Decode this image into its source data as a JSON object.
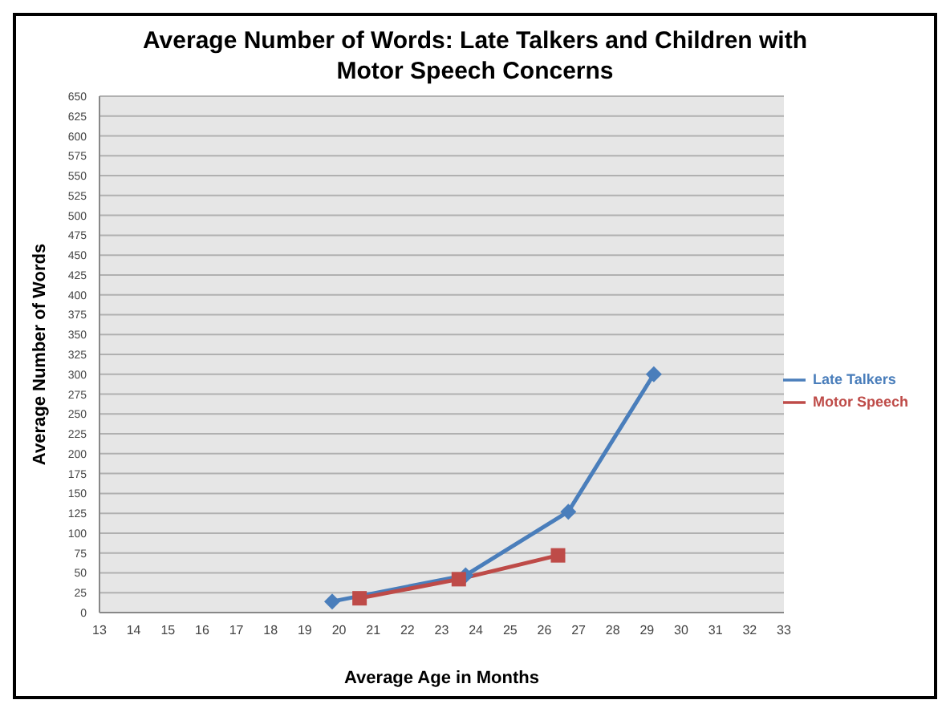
{
  "chart_data": {
    "type": "line",
    "title": "Average Number of Words: Late Talkers and Children with Motor Speech Concerns",
    "xlabel": "Average Age in Months",
    "ylabel": "Average Number of Words",
    "series": [
      {
        "name": "Late Talkers",
        "color": "#4a7ebb",
        "marker": "diamond",
        "x": [
          19.8,
          23.7,
          26.7,
          29.2
        ],
        "values": [
          14,
          47,
          127,
          300
        ]
      },
      {
        "name": "Motor Speech",
        "color": "#be4b48",
        "marker": "square",
        "x": [
          20.6,
          23.5,
          26.4
        ],
        "values": [
          18,
          42,
          72
        ]
      }
    ],
    "xlim": [
      13,
      33
    ],
    "xticks": [
      13,
      14,
      15,
      16,
      17,
      18,
      19,
      20,
      21,
      22,
      23,
      24,
      25,
      26,
      27,
      28,
      29,
      30,
      31,
      32,
      33
    ],
    "ylim": [
      0,
      650
    ],
    "yticks": [
      0,
      25,
      50,
      75,
      100,
      125,
      150,
      175,
      200,
      225,
      250,
      275,
      300,
      325,
      350,
      375,
      400,
      425,
      450,
      475,
      500,
      525,
      550,
      575,
      600,
      625,
      650
    ],
    "grid": "y",
    "legend": "right"
  }
}
